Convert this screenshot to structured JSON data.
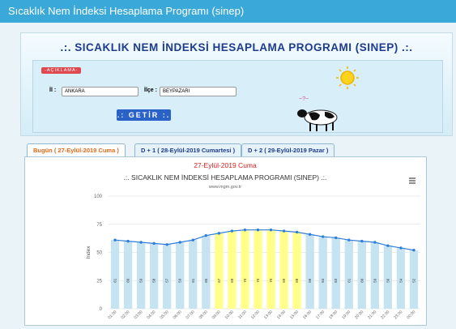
{
  "page": {
    "top_bar": "Sıcaklık Nem İndeksi Hesaplama Programı (sinep)",
    "header": {
      "title": ".:. SICAKLIK NEM İNDEKSİ HESAPLAMA PROGRAMI (SINEP) .:.",
      "info_button": "-AÇIKLAMA-",
      "province_label": "İl :",
      "province": "ANKARA",
      "district_label": "İlçe :",
      "district": "BEYPAZARI",
      "submit": ".: GETİR :."
    },
    "tabs": [
      "Bugün ( 27-Eylül-2019 Cuma )",
      "D + 1 ( 28-Eylül-2019 Cumartesi )",
      "D + 2 ( 29-Eylül-2019 Pazar )"
    ],
    "date_heading": "27-Eylül-2019 Cuma"
  },
  "chart_data": {
    "type": "bar_line",
    "title": ".:. SICAKLIK NEM İNDEKSİ HESAPLAMA PROGRAMI (SINEP) .:.",
    "subtitle": "www.mgm.gov.tr",
    "y_label": "Index",
    "categories": [
      "01:00",
      "02:00",
      "03:00",
      "04:00",
      "05:00",
      "06:00",
      "07:00",
      "08:00",
      "09:00",
      "10:00",
      "11:00",
      "12:00",
      "13:00",
      "14:00",
      "15:00",
      "16:00",
      "17:00",
      "18:00",
      "19:00",
      "20:00",
      "21:00",
      "22:00",
      "23:00",
      "00:00"
    ],
    "values": [
      61,
      60,
      59,
      58,
      57,
      59,
      61,
      65,
      67,
      69,
      70,
      70,
      70,
      69,
      68,
      66,
      64,
      63,
      61,
      60,
      59,
      56,
      54,
      52
    ],
    "bar_colors": [
      "#c5e3f1",
      "#c5e3f1",
      "#c5e3f1",
      "#c5e3f1",
      "#c5e3f1",
      "#c5e3f1",
      "#c5e3f1",
      "#c5e3f1",
      "#ffff8a",
      "#ffff8a",
      "#ffff8a",
      "#ffff8a",
      "#ffff8a",
      "#ffff8a",
      "#ffff8a",
      "#c5e3f1",
      "#c5e3f1",
      "#c5e3f1",
      "#c5e3f1",
      "#c5e3f1",
      "#c5e3f1",
      "#c5e3f1",
      "#c5e3f1",
      "#c5e3f1"
    ],
    "line_color": "#2f7ed8",
    "ylim": [
      0,
      100
    ],
    "yticks": [
      0,
      25,
      50,
      75,
      100
    ],
    "grid": true
  }
}
